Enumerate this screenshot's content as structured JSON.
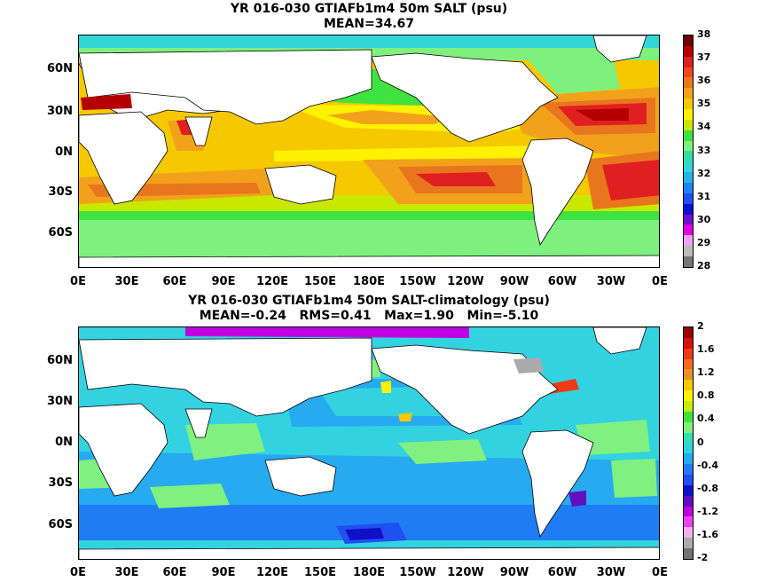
{
  "panels": [
    {
      "title_line1": "YR 016-030 GTIAFb1m4 50m SALT (psu)",
      "title_line2": "MEAN=34.67",
      "colorbar": {
        "labels": [
          "38",
          "37",
          "36",
          "35",
          "34",
          "33",
          "32",
          "31",
          "30",
          "29",
          "28"
        ],
        "colors": [
          "#6e0000",
          "#b40000",
          "#e02020",
          "#f04a1a",
          "#e8761e",
          "#f2a21a",
          "#f5c800",
          "#fff200",
          "#c8e800",
          "#3fe33f",
          "#7df07d",
          "#30dfa0",
          "#33d6d6",
          "#27b2e8",
          "#1f82f5",
          "#2050f0",
          "#1010d0",
          "#6a10c8",
          "#e000e0",
          "#f0a0f0",
          "#bbbbbb",
          "#777777"
        ]
      },
      "lat_labels": [
        "60N",
        "30N",
        "0N",
        "30S",
        "60S"
      ],
      "lon_labels": [
        "0E",
        "30E",
        "60E",
        "90E",
        "120E",
        "150E",
        "180E",
        "150W",
        "120W",
        "90W",
        "60W",
        "30W",
        "0E"
      ]
    },
    {
      "title_line1": "YR 016-030 GTIAFb1m4 50m SALT-climatology (psu)",
      "title_line2": "MEAN=-0.24   RMS=0.41   Max=1.90   Min=-5.10",
      "colorbar": {
        "labels": [
          "2",
          "1.6",
          "1.2",
          "0.8",
          "0.4",
          "0",
          "-0.4",
          "-0.8",
          "-1.2",
          "-1.6",
          "-2"
        ],
        "colors": [
          "#9a0000",
          "#d81010",
          "#f03a14",
          "#f06a1a",
          "#e89022",
          "#f5c800",
          "#fff200",
          "#c6ec00",
          "#3ee23e",
          "#80f080",
          "#33e0b0",
          "#33d2e0",
          "#27aaf0",
          "#1f7cf5",
          "#2050f0",
          "#1010c8",
          "#6010c0",
          "#c000e0",
          "#f040f0",
          "#f0b0f0",
          "#aaaaaa",
          "#707070"
        ]
      },
      "lat_labels": [
        "60N",
        "30N",
        "0N",
        "30S",
        "60S"
      ],
      "lon_labels": [
        "0E",
        "30E",
        "60E",
        "90E",
        "120E",
        "150E",
        "180E",
        "150W",
        "120W",
        "90W",
        "60W",
        "30W",
        "0E"
      ]
    }
  ]
}
